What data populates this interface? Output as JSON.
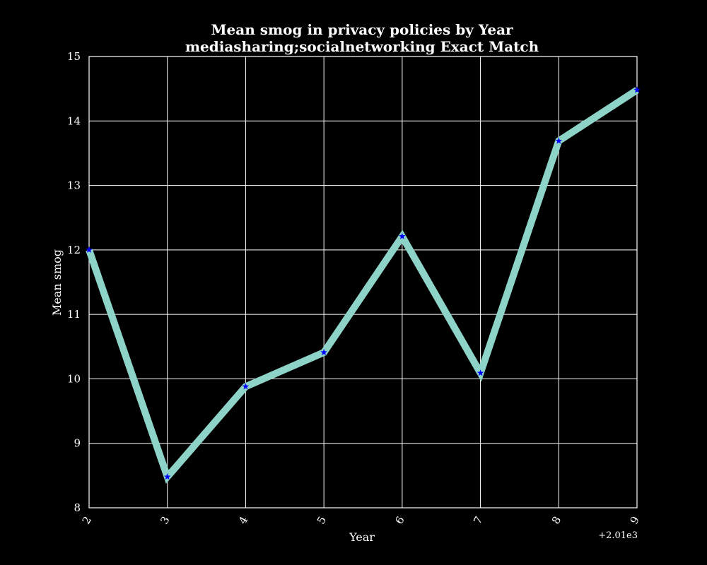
{
  "chart_data": {
    "type": "line",
    "title": "Mean smog in privacy policies by Year",
    "subtitle": "mediasharing;socialnetworking Exact Match",
    "xlabel": "Year",
    "ylabel": "Mean smog",
    "x_offset_label": "+2.01e3",
    "x": [
      2,
      3,
      4,
      5,
      6,
      7,
      8,
      9
    ],
    "x_tick_labels": [
      "2",
      "3",
      "4",
      "5",
      "6",
      "7",
      "8",
      "9"
    ],
    "y_tick_labels": [
      "8",
      "9",
      "10",
      "11",
      "12",
      "13",
      "14",
      "15"
    ],
    "series": [
      {
        "values": [
          12.0,
          8.48,
          9.88,
          10.41,
          12.21,
          10.09,
          13.69,
          14.48
        ]
      }
    ],
    "xlim": [
      2,
      9
    ],
    "ylim": [
      8,
      15
    ],
    "grid": true,
    "legend": "none",
    "colors": {
      "background": "#000000",
      "line": "#8dd3c7",
      "marker": "#0000ff",
      "grid": "#ffffff",
      "text": "#ffffff"
    },
    "marker": "star"
  }
}
